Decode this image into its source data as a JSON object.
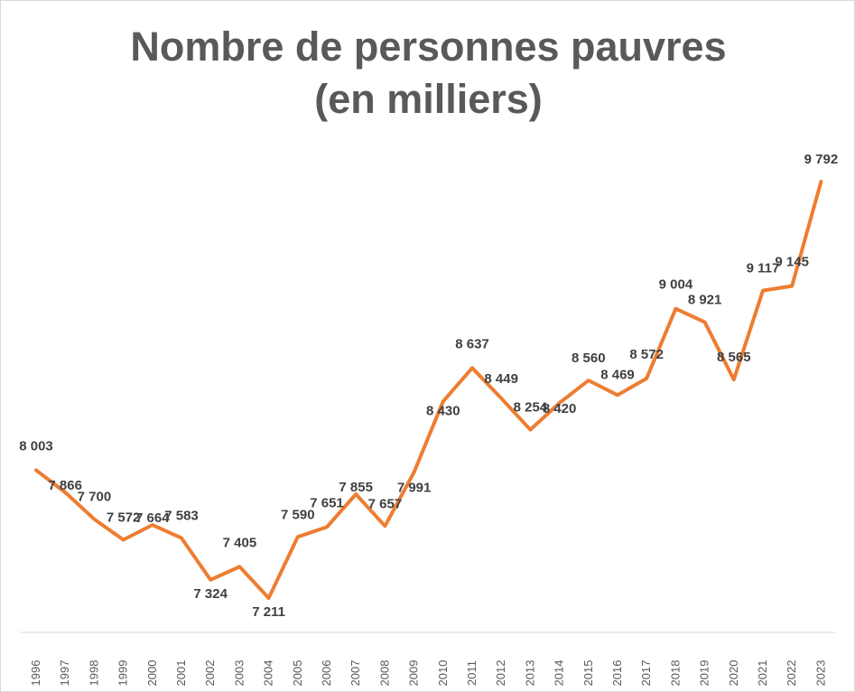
{
  "chart_data": {
    "type": "line",
    "title_lines": [
      "Nombre de personnes pauvres",
      "(en milliers)"
    ],
    "xlabel": "",
    "ylabel": "",
    "grid": false,
    "legend": "none",
    "ylim": [
      7000,
      10000
    ],
    "series": [
      {
        "name": "Nombre de personnes pauvres",
        "color": "#ed7d31",
        "categories": [
          "1996",
          "1997",
          "1998",
          "1999",
          "2000",
          "2001",
          "2002",
          "2003",
          "2004",
          "2005",
          "2006",
          "2007",
          "2008",
          "2009",
          "2010",
          "2011",
          "2012",
          "2013",
          "2014",
          "2015",
          "2016",
          "2017",
          "2018",
          "2019",
          "2020",
          "2021",
          "2022",
          "2023"
        ],
        "values": [
          8003,
          7866,
          7700,
          7572,
          7664,
          7583,
          7324,
          7405,
          7211,
          7590,
          7651,
          7855,
          7657,
          7991,
          8430,
          8637,
          8449,
          8254,
          8420,
          8560,
          8469,
          8572,
          9004,
          8921,
          8565,
          9117,
          9145,
          9792
        ],
        "labels": [
          "8 003",
          "7 866",
          "7 700",
          "7 572",
          "7 664",
          "7 583",
          "7 324",
          "7 405",
          "7 211",
          "7 590",
          "7 651",
          "7 855",
          "7 657",
          "7 991",
          "8 430",
          "8 637",
          "8 449",
          "8 254",
          "8 420",
          "8 560",
          "8 469",
          "8 572",
          "9 004",
          "8 921",
          "8 565",
          "9 117",
          "9 145",
          "9 792"
        ]
      }
    ]
  }
}
